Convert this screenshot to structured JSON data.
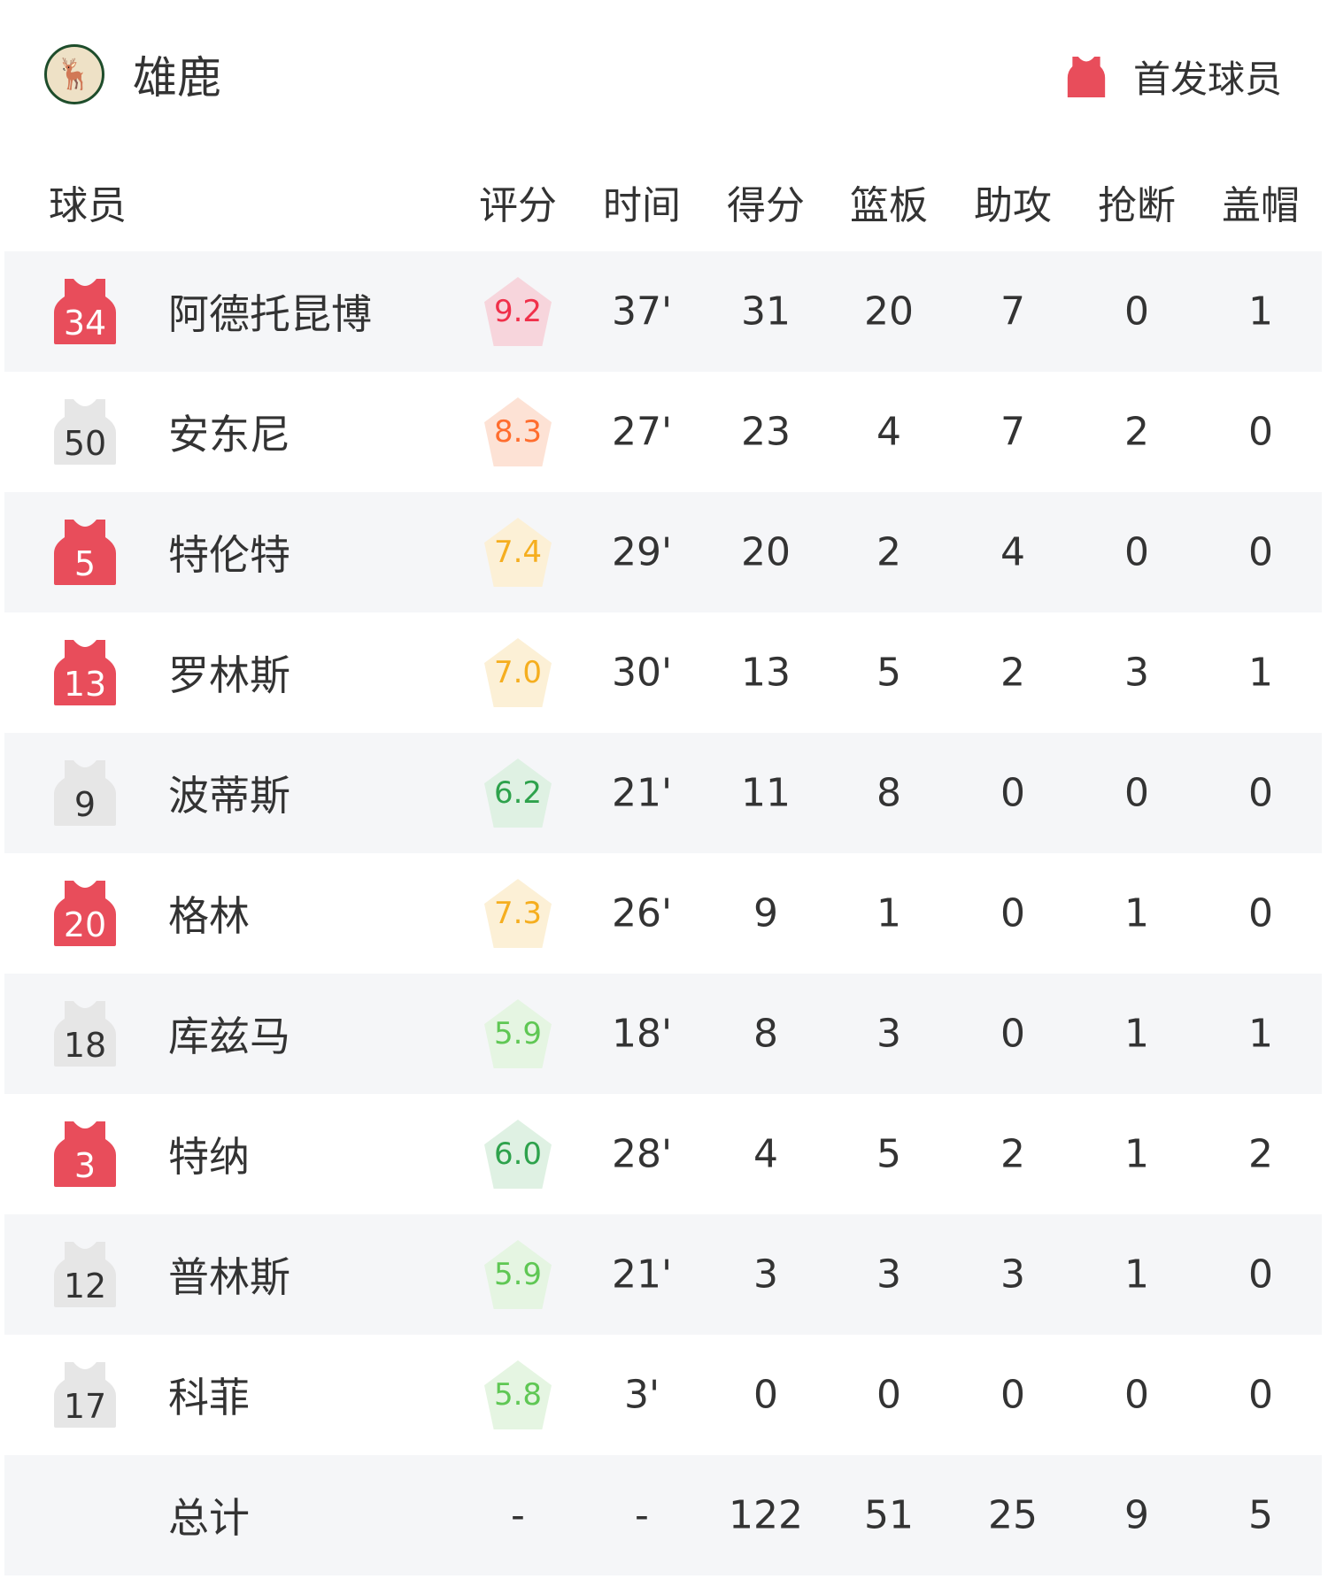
{
  "team": {
    "name": "雄鹿",
    "logo_text": "BUCKS"
  },
  "legend": {
    "label": "首发球员",
    "color": "#e84d5b"
  },
  "columns": [
    "球员",
    "评分",
    "时间",
    "得分",
    "篮板",
    "助攻",
    "抢断",
    "盖帽"
  ],
  "players": [
    {
      "number": "34",
      "starter": true,
      "name": "阿德托昆博",
      "rating": "9.2",
      "rating_tier": "red",
      "time": "37'",
      "pts": "31",
      "reb": "20",
      "ast": "7",
      "stl": "0",
      "blk": "1"
    },
    {
      "number": "50",
      "starter": false,
      "name": "安东尼",
      "rating": "8.3",
      "rating_tier": "orange",
      "time": "27'",
      "pts": "23",
      "reb": "4",
      "ast": "7",
      "stl": "2",
      "blk": "0"
    },
    {
      "number": "5",
      "starter": true,
      "name": "特伦特",
      "rating": "7.4",
      "rating_tier": "yellow",
      "time": "29'",
      "pts": "20",
      "reb": "2",
      "ast": "4",
      "stl": "0",
      "blk": "0"
    },
    {
      "number": "13",
      "starter": true,
      "name": "罗林斯",
      "rating": "7.0",
      "rating_tier": "yellow",
      "time": "30'",
      "pts": "13",
      "reb": "5",
      "ast": "2",
      "stl": "3",
      "blk": "1"
    },
    {
      "number": "9",
      "starter": false,
      "name": "波蒂斯",
      "rating": "6.2",
      "rating_tier": "green",
      "time": "21'",
      "pts": "11",
      "reb": "8",
      "ast": "0",
      "stl": "0",
      "blk": "0"
    },
    {
      "number": "20",
      "starter": true,
      "name": "格林",
      "rating": "7.3",
      "rating_tier": "yellow",
      "time": "26'",
      "pts": "9",
      "reb": "1",
      "ast": "0",
      "stl": "1",
      "blk": "0"
    },
    {
      "number": "18",
      "starter": false,
      "name": "库兹马",
      "rating": "5.9",
      "rating_tier": "lightgreen",
      "time": "18'",
      "pts": "8",
      "reb": "3",
      "ast": "0",
      "stl": "1",
      "blk": "1"
    },
    {
      "number": "3",
      "starter": true,
      "name": "特纳",
      "rating": "6.0",
      "rating_tier": "green",
      "time": "28'",
      "pts": "4",
      "reb": "5",
      "ast": "2",
      "stl": "1",
      "blk": "2"
    },
    {
      "number": "12",
      "starter": false,
      "name": "普林斯",
      "rating": "5.9",
      "rating_tier": "lightgreen",
      "time": "21'",
      "pts": "3",
      "reb": "3",
      "ast": "3",
      "stl": "1",
      "blk": "0"
    },
    {
      "number": "17",
      "starter": false,
      "name": "科菲",
      "rating": "5.8",
      "rating_tier": "lightgreen",
      "time": "3'",
      "pts": "0",
      "reb": "0",
      "ast": "0",
      "stl": "0",
      "blk": "0"
    }
  ],
  "total": {
    "name": "总计",
    "rating": "-",
    "time": "-",
    "pts": "122",
    "reb": "51",
    "ast": "25",
    "stl": "9",
    "blk": "5"
  },
  "tiers": {
    "red": {
      "fg": "#f0304a",
      "bg": "#f7d5dc"
    },
    "orange": {
      "fg": "#ff6d2e",
      "bg": "#fde2d5"
    },
    "yellow": {
      "fg": "#f5ae1f",
      "bg": "#fcf0d6"
    },
    "green": {
      "fg": "#2ea24c",
      "bg": "#dff1e3"
    },
    "lightgreen": {
      "fg": "#5fc754",
      "bg": "#e5f5e2"
    }
  },
  "bench_jersey_color": "#e6e6e6"
}
